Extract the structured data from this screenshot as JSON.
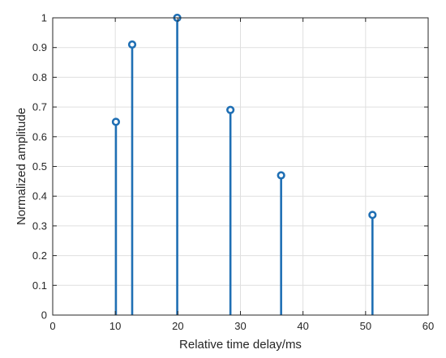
{
  "chart_data": {
    "type": "stem",
    "title": "",
    "xlabel": "Relative time delay/ms",
    "ylabel": "Normalized amplitude",
    "xlim": [
      0,
      60
    ],
    "ylim": [
      0,
      1
    ],
    "xticks": [
      0,
      10,
      20,
      30,
      40,
      50,
      60
    ],
    "yticks": [
      0,
      0.1,
      0.2,
      0.3,
      0.4,
      0.5,
      0.6,
      0.7,
      0.8,
      0.9,
      1
    ],
    "xtick_labels": [
      "0",
      "10",
      "20",
      "30",
      "40",
      "50",
      "60"
    ],
    "ytick_labels": [
      "0",
      "0.1",
      "0.2",
      "0.3",
      "0.4",
      "0.5",
      "0.6",
      "0.7",
      "0.8",
      "0.9",
      "1"
    ],
    "grid": true,
    "x": [
      10.1,
      12.7,
      19.9,
      28.4,
      36.5,
      51.1
    ],
    "values": [
      0.65,
      0.91,
      1.0,
      0.69,
      0.47,
      0.337
    ],
    "color": "#1f6fb4"
  }
}
